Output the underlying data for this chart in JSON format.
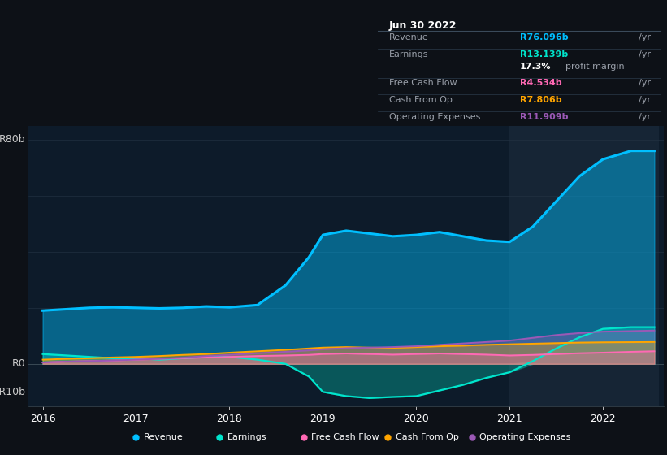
{
  "bg_color": "#0d1117",
  "plot_bg_color": "#0d1b2a",
  "grid_color": "#253545",
  "years": [
    2016.0,
    2016.25,
    2016.5,
    2016.75,
    2017.0,
    2017.25,
    2017.5,
    2017.75,
    2018.0,
    2018.3,
    2018.6,
    2018.85,
    2019.0,
    2019.25,
    2019.5,
    2019.75,
    2020.0,
    2020.25,
    2020.5,
    2020.75,
    2021.0,
    2021.25,
    2021.5,
    2021.75,
    2022.0,
    2022.3,
    2022.55
  ],
  "revenue": [
    19,
    19.5,
    20,
    20.2,
    20,
    19.8,
    20,
    20.5,
    20.2,
    21,
    28,
    38,
    46,
    47.5,
    46.5,
    45.5,
    46,
    47,
    45.5,
    44,
    43.5,
    49,
    58,
    67,
    73,
    76,
    76
  ],
  "earnings": [
    3.5,
    3.0,
    2.5,
    2.0,
    2.0,
    1.5,
    2.0,
    2.5,
    2.5,
    1.5,
    0.0,
    -4.5,
    -10,
    -11.5,
    -12.2,
    -11.8,
    -11.5,
    -9.5,
    -7.5,
    -5,
    -3,
    1,
    5.5,
    9.5,
    12.5,
    13.1,
    13.1
  ],
  "free_cash_flow": [
    0.5,
    0.8,
    1.0,
    1.2,
    1.5,
    1.8,
    2.0,
    2.3,
    2.5,
    2.8,
    3.0,
    3.2,
    3.5,
    3.7,
    3.5,
    3.3,
    3.5,
    3.7,
    3.5,
    3.3,
    3.0,
    3.2,
    3.5,
    3.8,
    4.0,
    4.3,
    4.5
  ],
  "cash_from_op": [
    1.5,
    1.8,
    2.0,
    2.3,
    2.5,
    2.8,
    3.2,
    3.5,
    4.0,
    4.5,
    5.0,
    5.5,
    5.8,
    6.0,
    5.8,
    5.7,
    6.0,
    6.3,
    6.5,
    6.8,
    7.0,
    7.2,
    7.4,
    7.6,
    7.7,
    7.75,
    7.8
  ],
  "operating_expenses": [
    0.5,
    0.8,
    1.0,
    1.2,
    1.5,
    1.8,
    2.2,
    2.8,
    3.2,
    3.8,
    4.3,
    4.8,
    5.2,
    5.6,
    5.8,
    6.0,
    6.3,
    6.8,
    7.3,
    7.8,
    8.3,
    9.3,
    10.3,
    11.0,
    11.5,
    11.7,
    11.9
  ],
  "revenue_color": "#00bfff",
  "earnings_color": "#00e5cc",
  "free_cash_flow_color": "#ff69b4",
  "cash_from_op_color": "#ffa500",
  "operating_expenses_color": "#9b59b6",
  "highlight_x_start": 2021.0,
  "highlight_x_end": 2022.6,
  "ylim_min": -15,
  "ylim_max": 85,
  "xlim_min": 2015.85,
  "xlim_max": 2022.65,
  "xticks": [
    2016,
    2017,
    2018,
    2019,
    2020,
    2021,
    2022
  ],
  "info_box_title": "Jun 30 2022",
  "info_rows": [
    {
      "label": "Revenue",
      "value": "R76.096b",
      "unit": " /yr",
      "color": "#00bfff",
      "is_margin": false
    },
    {
      "label": "Earnings",
      "value": "R13.139b",
      "unit": " /yr",
      "color": "#00e5cc",
      "is_margin": false
    },
    {
      "label": "",
      "value": "17.3%",
      "unit": " profit margin",
      "color": "#ffffff",
      "is_margin": true
    },
    {
      "label": "Free Cash Flow",
      "value": "R4.534b",
      "unit": " /yr",
      "color": "#ff69b4",
      "is_margin": false
    },
    {
      "label": "Cash From Op",
      "value": "R7.806b",
      "unit": " /yr",
      "color": "#ffa500",
      "is_margin": false
    },
    {
      "label": "Operating Expenses",
      "value": "R11.909b",
      "unit": " /yr",
      "color": "#9b59b6",
      "is_margin": false
    }
  ],
  "legend": [
    {
      "label": "Revenue",
      "color": "#00bfff"
    },
    {
      "label": "Earnings",
      "color": "#00e5cc"
    },
    {
      "label": "Free Cash Flow",
      "color": "#ff69b4"
    },
    {
      "label": "Cash From Op",
      "color": "#ffa500"
    },
    {
      "label": "Operating Expenses",
      "color": "#9b59b6"
    }
  ]
}
